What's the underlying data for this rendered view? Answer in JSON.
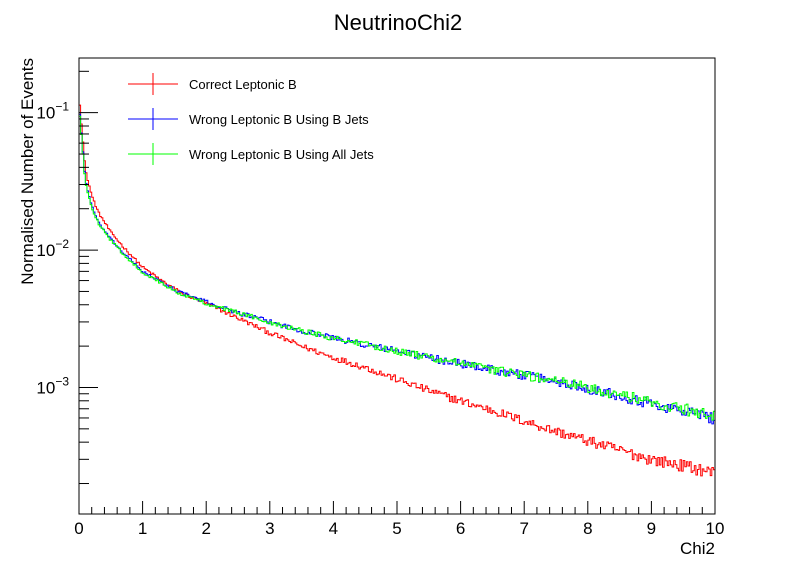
{
  "chart_data": {
    "type": "line",
    "title": "NeutrinoChi2",
    "xlabel": "Chi2",
    "ylabel": "Normalised Number of Events",
    "xlim": [
      0,
      10
    ],
    "ylim": [
      0.00012,
      0.25
    ],
    "y_scale": "log",
    "grid": false,
    "legend_position": "top-left",
    "x_ticks": [
      "0",
      "1",
      "2",
      "3",
      "4",
      "5",
      "6",
      "7",
      "8",
      "9",
      "10"
    ],
    "y_ticks": [
      {
        "base": "10",
        "exp": "−1",
        "value": 0.1
      },
      {
        "base": "10",
        "exp": "−2",
        "value": 0.01
      },
      {
        "base": "10",
        "exp": "−3",
        "value": 0.001
      }
    ],
    "x": [
      0.0,
      0.1,
      0.2,
      0.3,
      0.5,
      0.7,
      1.0,
      1.3,
      1.6,
      2.0,
      2.5,
      3.0,
      3.5,
      4.0,
      4.5,
      5.0,
      5.5,
      6.0,
      6.5,
      7.0,
      7.5,
      8.0,
      8.5,
      9.0,
      9.5,
      10.0
    ],
    "series": [
      {
        "name": "Correct Leptonic B",
        "color": "#ff0000",
        "values": [
          0.135,
          0.038,
          0.025,
          0.019,
          0.0135,
          0.0105,
          0.0075,
          0.006,
          0.0049,
          0.0041,
          0.0032,
          0.0025,
          0.002,
          0.00165,
          0.0014,
          0.00115,
          0.00095,
          0.0008,
          0.00068,
          0.00057,
          0.00048,
          0.00041,
          0.00035,
          0.0003,
          0.00027,
          0.00024
        ]
      },
      {
        "name": "Wrong Leptonic B Using B Jets",
        "color": "#0000ff",
        "values": [
          0.115,
          0.032,
          0.021,
          0.016,
          0.012,
          0.0095,
          0.007,
          0.0058,
          0.0049,
          0.0042,
          0.0035,
          0.003,
          0.0026,
          0.0023,
          0.00205,
          0.00185,
          0.00165,
          0.0015,
          0.00135,
          0.00123,
          0.00111,
          0.00099,
          0.00088,
          0.00076,
          0.00068,
          0.0006
        ]
      },
      {
        "name": "Wrong Leptonic B Using All Jets",
        "color": "#00ff00",
        "values": [
          0.11,
          0.031,
          0.0205,
          0.0158,
          0.0118,
          0.0093,
          0.0069,
          0.0057,
          0.0048,
          0.0041,
          0.0035,
          0.003,
          0.0026,
          0.0023,
          0.00205,
          0.00185,
          0.00165,
          0.0015,
          0.00135,
          0.00123,
          0.00112,
          0.001,
          0.00089,
          0.00078,
          0.0007,
          0.00062
        ]
      }
    ]
  }
}
